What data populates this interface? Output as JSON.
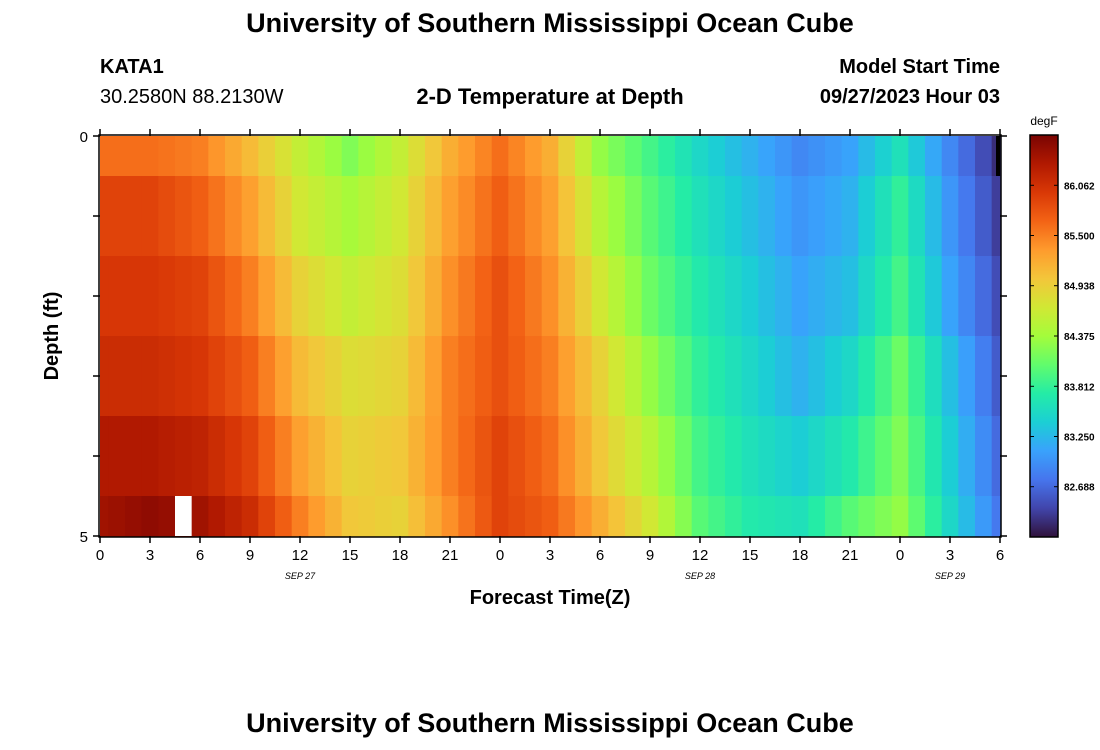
{
  "page": {
    "title_top": "University of Southern Mississippi Ocean Cube",
    "title_bottom": "University of Southern Mississippi Ocean Cube",
    "station": "KATA1",
    "coords": "30.2580N  88.2130W",
    "plot_title": "2-D Temperature at Depth",
    "model_start_label": "Model Start Time",
    "model_start_value": "09/27/2023 Hour 03"
  },
  "chart_data": {
    "type": "heatmap",
    "title": "2-D Temperature at Depth",
    "xlabel": "Forecast Time(Z)",
    "ylabel": "Depth (ft)",
    "x_start": "2023-09-27T00:00Z",
    "x_step_hours": 1,
    "x_ticks": [
      "0",
      "3",
      "6",
      "9",
      "12",
      "15",
      "18",
      "21",
      "0",
      "3",
      "6",
      "9",
      "12",
      "15",
      "18",
      "21",
      "0",
      "3",
      "6"
    ],
    "date_labels": [
      {
        "text": "SEP 27",
        "hour": 12
      },
      {
        "text": "SEP 28",
        "hour": 36
      },
      {
        "text": "SEP 29",
        "hour": 51
      }
    ],
    "y_ticks": [
      "0",
      "5"
    ],
    "depth_rows": [
      0,
      1,
      2,
      3,
      4,
      5
    ],
    "ylim": [
      5,
      0
    ],
    "colorbar": {
      "unit": "degF",
      "min": 82.125,
      "max": 86.625,
      "tick_values": [
        82.688,
        83.25,
        83.812,
        84.375,
        84.938,
        85.5,
        86.062
      ],
      "tick_labels": [
        "82.688",
        "83.250",
        "83.812",
        "84.375",
        "84.938",
        "85.500",
        "86.062"
      ],
      "colors": [
        "#30123b",
        "#4145ab",
        "#4675ed",
        "#39a2fc",
        "#1bcfd4",
        "#24eca6",
        "#61fc6c",
        "#a4fc3b",
        "#d1e834",
        "#f3c63a",
        "#fe9b2d",
        "#f36315",
        "#d93806",
        "#b11901",
        "#7a0402"
      ]
    },
    "anchor_hours": [
      0,
      3,
      6,
      9,
      12,
      15,
      18,
      21,
      24,
      27,
      30,
      33,
      36,
      39,
      42,
      45,
      48,
      51,
      54
    ],
    "anchor_values": [
      [
        85.6,
        85.6,
        85.5,
        85.1,
        84.6,
        84.2,
        84.6,
        85.2,
        85.6,
        85.2,
        84.3,
        83.9,
        83.5,
        83.2,
        82.9,
        83.1,
        83.6,
        82.9,
        82.3
      ],
      [
        85.9,
        85.9,
        85.7,
        85.3,
        84.7,
        84.4,
        84.7,
        85.3,
        85.7,
        85.3,
        84.5,
        84.0,
        83.6,
        83.3,
        83.0,
        83.2,
        83.8,
        83.0,
        82.4
      ],
      [
        86.0,
        86.0,
        85.9,
        85.5,
        84.9,
        84.6,
        84.8,
        85.4,
        85.8,
        85.4,
        84.7,
        84.1,
        83.7,
        83.4,
        83.1,
        83.3,
        83.9,
        83.1,
        82.5
      ],
      [
        86.1,
        86.1,
        86.0,
        85.7,
        85.1,
        84.8,
        84.9,
        85.5,
        85.8,
        85.5,
        84.9,
        84.3,
        83.8,
        83.5,
        83.2,
        83.5,
        84.1,
        83.3,
        82.6
      ],
      [
        86.3,
        86.3,
        86.2,
        85.9,
        85.3,
        84.9,
        85.0,
        85.5,
        85.9,
        85.6,
        85.0,
        84.5,
        83.9,
        83.6,
        83.4,
        83.7,
        84.2,
        83.4,
        82.7
      ],
      [
        86.4,
        86.5,
        86.4,
        86.1,
        85.5,
        85.0,
        84.9,
        85.4,
        85.9,
        85.7,
        85.2,
        84.7,
        84.0,
        83.7,
        83.6,
        84.0,
        84.3,
        83.5,
        82.8
      ]
    ],
    "missing_cells": [
      {
        "hour": 5,
        "depth": 5
      },
      {
        "hour": 54,
        "depth": 0
      }
    ]
  }
}
